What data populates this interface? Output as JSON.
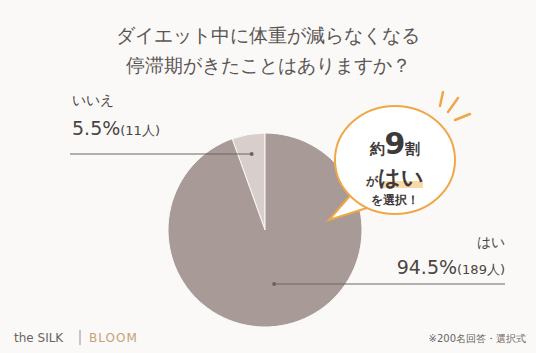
{
  "chart_data": {
    "type": "pie",
    "title": "ダイエット中に体重が減らなくなる\n停滞期がきたことはありますか？",
    "categories": [
      "いいえ",
      "はい"
    ],
    "values": [
      5.5,
      94.5
    ],
    "value_labels": [
      "5.5%",
      "94.5%"
    ],
    "count_labels": [
      "(11人)",
      "(189人)"
    ],
    "data_labels": true,
    "colors": [
      "#d8cfcc",
      "#a89a97"
    ],
    "annotation": [
      [
        "約",
        "9",
        "割"
      ],
      [
        "が",
        "はい"
      ],
      [
        "を選択！"
      ]
    ],
    "brand": [
      "the SILK",
      "BLOOM"
    ],
    "note": "※200名回答・選択式"
  }
}
